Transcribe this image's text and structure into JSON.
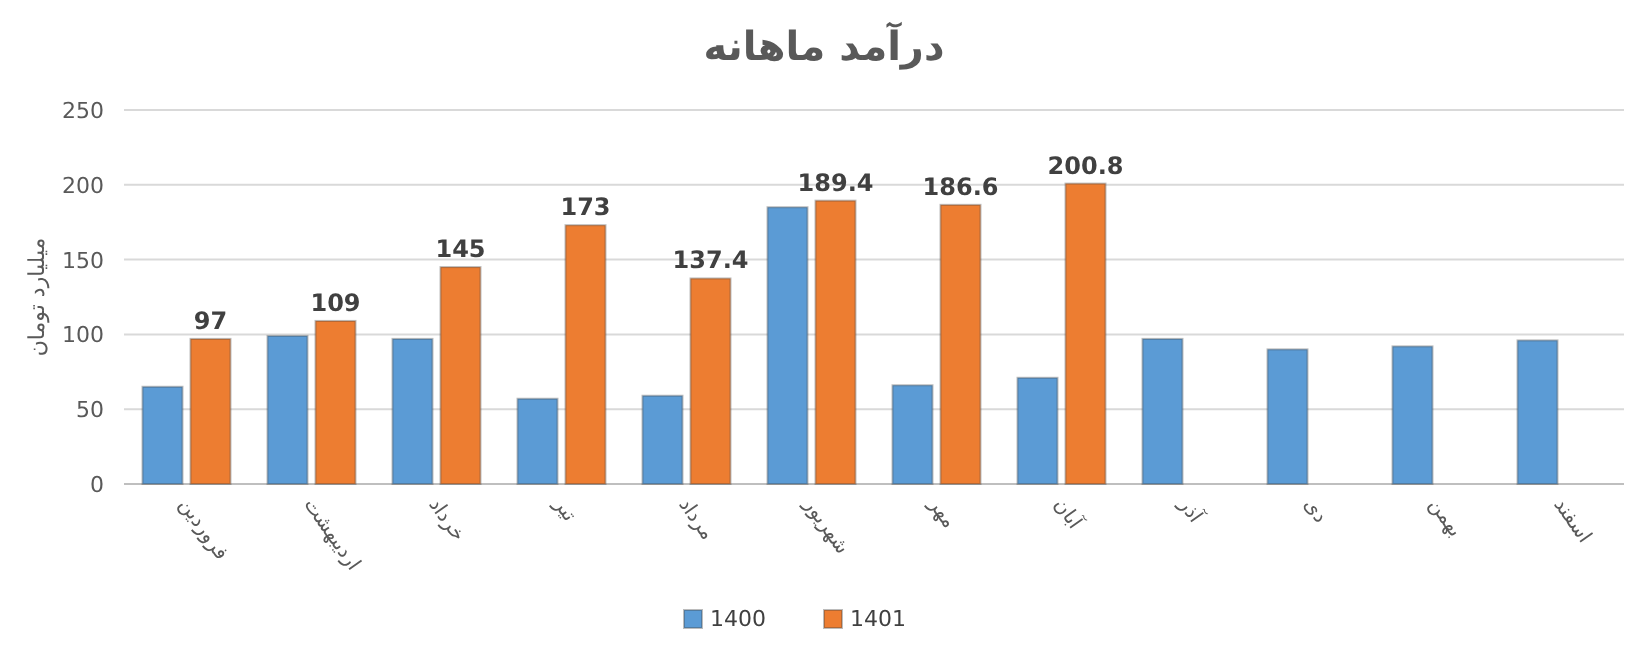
{
  "chart_data": {
    "type": "bar",
    "title": "درآمد ماهانه",
    "ylabel": "میلیارد تومان",
    "categories": [
      "فروردین",
      "اردیبهشت",
      "خرداد",
      "تیر",
      "مرداد",
      "شهریور",
      "مهر",
      "آبان",
      "آذر",
      "دی",
      "بهمن",
      "اسفند"
    ],
    "series": [
      {
        "name": "1400",
        "color": "#5b9bd5",
        "values": [
          65,
          99,
          97,
          57,
          59,
          185,
          66,
          71,
          97,
          90,
          92,
          96
        ]
      },
      {
        "name": "1401",
        "color": "#ed7d31",
        "values": [
          97,
          109,
          145,
          173,
          137.4,
          189.4,
          186.6,
          200.8,
          null,
          null,
          null,
          null
        ],
        "value_labels": [
          "97",
          "109",
          "145",
          "173",
          "137.4",
          "189.4",
          "186.6",
          "200.8",
          null,
          null,
          null,
          null
        ]
      }
    ],
    "ylim": [
      0,
      250
    ],
    "yticks": [
      0,
      50,
      100,
      150,
      200,
      250
    ],
    "grid": "y",
    "legend": "bottom"
  }
}
